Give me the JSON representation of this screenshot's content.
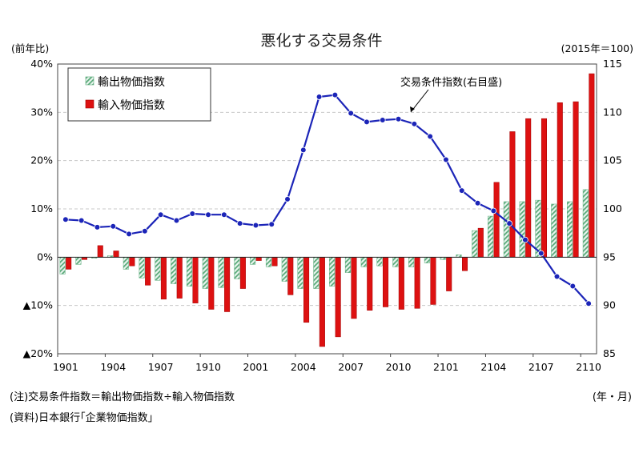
{
  "title": "悪化する交易条件",
  "left_unit": "(前年比)",
  "right_unit": "(2015年＝100)",
  "note": "(注)交易条件指数＝輸出物価指数÷輸入物価指数",
  "source": "(資料)日本銀行｢企業物価指数｣",
  "period_unit": "(年・月)",
  "annotation": "交易条件指数(右目盛)",
  "colors": {
    "export": "#5aaa7a",
    "import": "#dd1111",
    "tot": "#1c25b8",
    "grid": "#c8c8c8"
  },
  "chart_data": {
    "type": "bar",
    "title": "悪化する交易条件",
    "x_tick_labels": [
      "1901",
      "1904",
      "1907",
      "1910",
      "2001",
      "2004",
      "2007",
      "2010",
      "2101",
      "2104",
      "2107",
      "2110"
    ],
    "categories": [
      "1901",
      "1902",
      "1903",
      "1904",
      "1905",
      "1906",
      "1907",
      "1908",
      "1909",
      "1910",
      "1911",
      "1912",
      "2001",
      "2002",
      "2003",
      "2004",
      "2005",
      "2006",
      "2007",
      "2008",
      "2009",
      "2010",
      "2011",
      "2012",
      "2101",
      "2102",
      "2103",
      "2104",
      "2105",
      "2106",
      "2107",
      "2108",
      "2109",
      "2110"
    ],
    "y_left": {
      "ylim": [
        -20,
        40
      ],
      "ticks": [
        "▲20%",
        "▲10%",
        "0%",
        "10%",
        "20%",
        "30%",
        "40%"
      ],
      "tick_values": [
        -20,
        -10,
        0,
        10,
        20,
        30,
        40
      ]
    },
    "y_right": {
      "ylim": [
        85,
        115
      ],
      "ticks": [
        "85",
        "90",
        "95",
        "100",
        "105",
        "110",
        "115"
      ],
      "tick_values": [
        85,
        90,
        95,
        100,
        105,
        110,
        115
      ]
    },
    "legend_position": "top-left",
    "grid": true,
    "series": [
      {
        "name": "輸出物価指数",
        "axis": "left",
        "kind": "bar",
        "pattern": "hatched-green",
        "values": [
          -3.5,
          -1.5,
          -0.2,
          0.3,
          -2.5,
          -4.3,
          -4.8,
          -5.5,
          -6.0,
          -6.5,
          -6.3,
          -4.5,
          -1.5,
          -2.0,
          -5.0,
          -6.5,
          -6.5,
          -6.0,
          -3.2,
          -2.0,
          -1.8,
          -2.0,
          -2.0,
          -1.2,
          -0.5,
          0.5,
          5.5,
          8.5,
          11.5,
          11.5,
          11.8,
          11.0,
          11.5,
          14.0
        ]
      },
      {
        "name": "輸入物価指数",
        "axis": "left",
        "kind": "bar",
        "pattern": "solid-red",
        "values": [
          -2.5,
          -0.5,
          2.4,
          1.3,
          -1.8,
          -5.8,
          -8.7,
          -8.5,
          -9.5,
          -10.8,
          -11.3,
          -6.5,
          -0.7,
          -1.8,
          -7.8,
          -13.5,
          -18.5,
          -16.5,
          -12.7,
          -11.0,
          -10.3,
          -10.8,
          -10.6,
          -9.8,
          -7.0,
          -2.8,
          6.0,
          15.5,
          26.0,
          28.7,
          28.7,
          32.0,
          32.2,
          38.0
        ]
      },
      {
        "name": "交易条件指数",
        "axis": "right",
        "kind": "line",
        "marker": "circle",
        "values": [
          98.9,
          98.8,
          98.1,
          98.2,
          97.4,
          97.7,
          99.4,
          98.8,
          99.5,
          99.4,
          99.4,
          98.5,
          98.3,
          98.4,
          101.0,
          106.1,
          111.6,
          111.8,
          109.9,
          109.0,
          109.2,
          109.3,
          108.8,
          107.5,
          105.1,
          101.9,
          100.6,
          99.8,
          98.5,
          96.8,
          95.4,
          93.0,
          92.0,
          90.2
        ]
      }
    ]
  }
}
